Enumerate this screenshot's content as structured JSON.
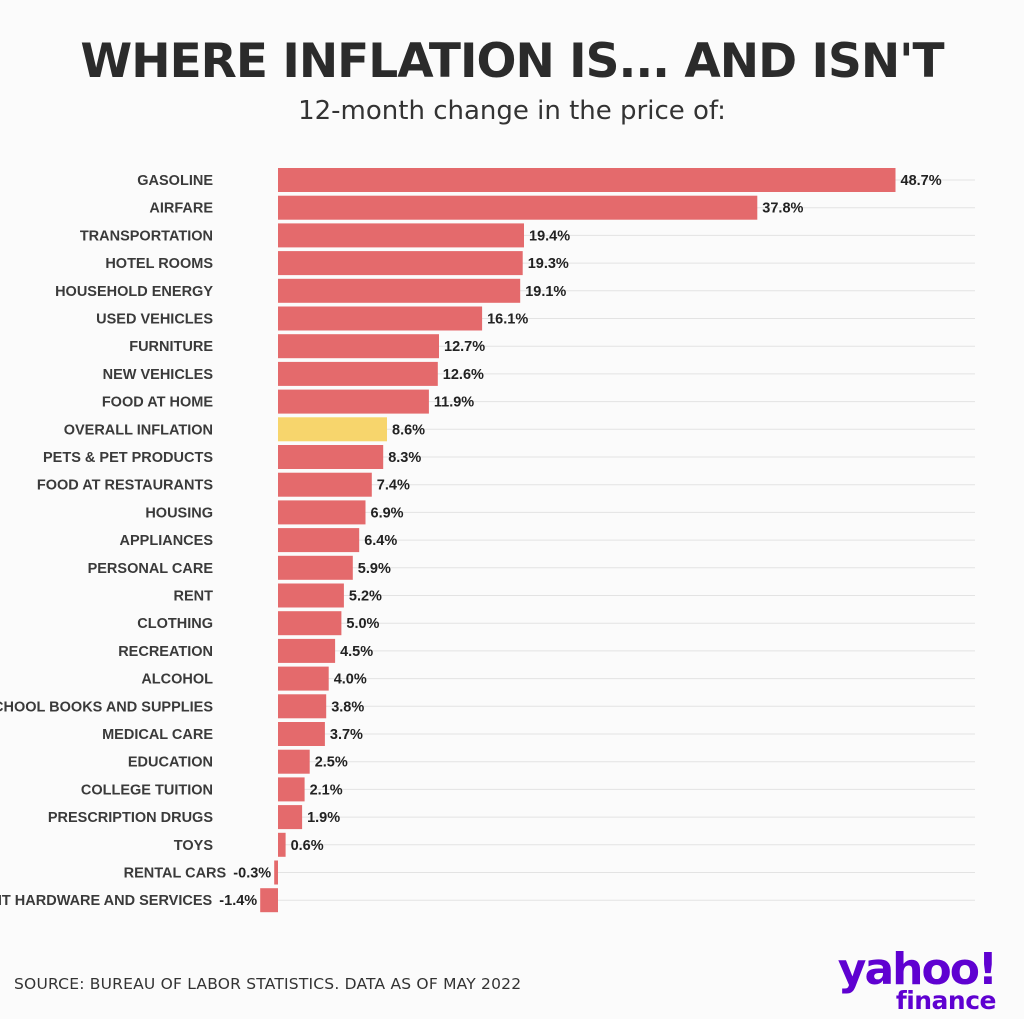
{
  "header": {
    "title": "WHERE INFLATION IS... AND ISN'T",
    "subtitle": "12-month change in the price of:"
  },
  "footer": {
    "source": "SOURCE: BUREAU OF LABOR STATISTICS. DATA AS OF MAY 2022",
    "logo_main": "yahoo!",
    "logo_sub": "finance"
  },
  "colors": {
    "bar": "#e46a6c",
    "highlight": "#f7d56c",
    "logo": "#5f01d1",
    "grid": "#e3e3e3"
  },
  "chart_data": {
    "type": "bar",
    "orientation": "horizontal",
    "title": "WHERE INFLATION IS... AND ISN'T",
    "subtitle": "12-month change in the price of:",
    "xlabel": "",
    "ylabel": "",
    "unit": "%",
    "highlight": "OVERALL INFLATION",
    "categories": [
      "GASOLINE",
      "AIRFARE",
      "TRANSPORTATION",
      "HOTEL ROOMS",
      "HOUSEHOLD ENERGY",
      "USED VEHICLES",
      "FURNITURE",
      "NEW VEHICLES",
      "FOOD AT HOME",
      "OVERALL INFLATION",
      "PETS & PET PRODUCTS",
      "FOOD AT RESTAURANTS",
      "HOUSING",
      "APPLIANCES",
      "PERSONAL CARE",
      "RENT",
      "CLOTHING",
      "RECREATION",
      "ALCOHOL",
      "SCHOOL BOOKS AND SUPPLIES",
      "MEDICAL CARE",
      "EDUCATION",
      "COLLEGE TUITION",
      "PRESCRIPTION DRUGS",
      "TOYS",
      "RENTAL CARS",
      "IT HARDWARE AND SERVICES"
    ],
    "values": [
      48.7,
      37.8,
      19.4,
      19.3,
      19.1,
      16.1,
      12.7,
      12.6,
      11.9,
      8.6,
      8.3,
      7.4,
      6.9,
      6.4,
      5.9,
      5.2,
      5.0,
      4.5,
      4.0,
      3.8,
      3.7,
      2.5,
      2.1,
      1.9,
      0.6,
      -0.3,
      -1.4
    ],
    "value_labels": [
      "48.7%",
      "37.8%",
      "19.4%",
      "19.3%",
      "19.1%",
      "16.1%",
      "12.7%",
      "12.6%",
      "11.9%",
      "8.6%",
      "8.3%",
      "7.4%",
      "6.9%",
      "6.4%",
      "5.9%",
      "5.2%",
      "5.0%",
      "4.5%",
      "4.0%",
      "3.8%",
      "3.7%",
      "2.5%",
      "2.1%",
      "1.9%",
      "0.6%",
      "-0.3%",
      "-1.4%"
    ],
    "xlim": [
      -1.4,
      48.7
    ],
    "grid": true,
    "legend": "none"
  }
}
